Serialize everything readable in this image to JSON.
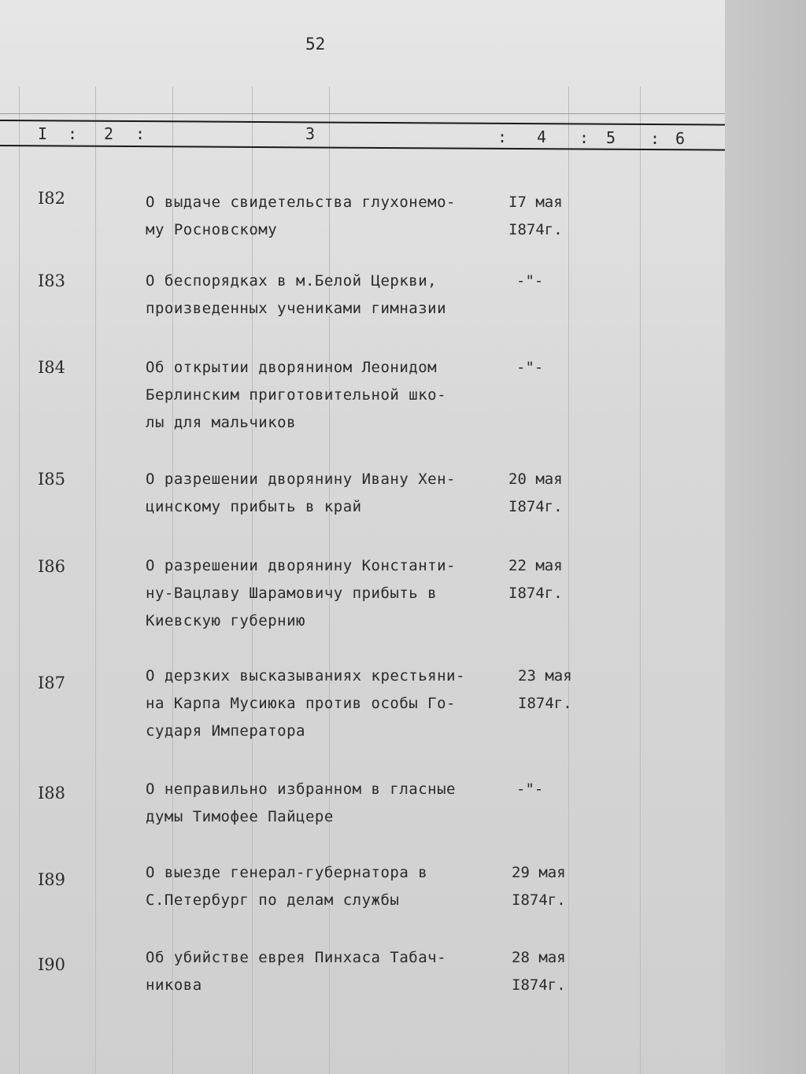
{
  "page_number": "52",
  "column_headers": [
    "I",
    "2",
    "3",
    "4",
    "5",
    "6"
  ],
  "rows": [
    {
      "number": "I82",
      "text": "О выдаче свидетельства глухонемо-\nму Росновскому",
      "date": "I7 мая\nI874г."
    },
    {
      "number": "I83",
      "text": "О беспорядках в м.Белой Церкви,\nпроизведенных учениками гимназии",
      "date": "-\"-"
    },
    {
      "number": "I84",
      "text": "Об открытии дворянином Леонидом\nБерлинским приготовительной шко-\nлы для мальчиков",
      "date": "-\"-"
    },
    {
      "number": "I85",
      "text": "О разрешении дворянину Ивану Хен-\nцинскому прибыть в край",
      "date": "20 мая\nI874г."
    },
    {
      "number": "I86",
      "text": "О разрешении дворянину Константи-\nну-Вацлаву Шарамовичу прибыть в\nКиевскую губернию",
      "date": "22 мая\nI874г."
    },
    {
      "number": "I87",
      "text": "О дерзких высказываниях крестьяни-\nна Карпа Мусиюка против особы Го-\nсударя Императора",
      "date": "23 мая\nI874г."
    },
    {
      "number": "I88",
      "text": "О неправильно избранном в гласные\nдумы Тимофее Пайцере",
      "date": "-\"-"
    },
    {
      "number": "I89",
      "text": "О выезде генерал-губернатора в\nС.Петербург по делам службы",
      "date": "29 мая\nI874г."
    },
    {
      "number": "I90",
      "text": "Об убийстве еврея Пинхаса Табач-\nникова",
      "date": "28 мая\nI874г."
    }
  ]
}
